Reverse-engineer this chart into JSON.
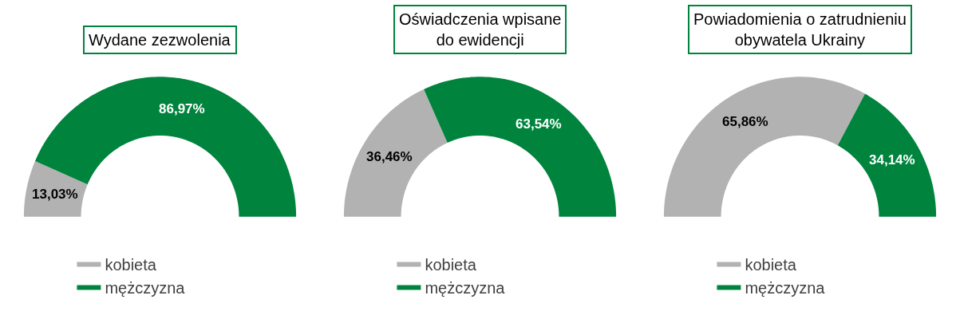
{
  "chart_data": [
    {
      "type": "donut",
      "title": "Wydane zezwolenia",
      "categories": [
        "kobieta",
        "mężczyzna"
      ],
      "values": [
        13.03,
        86.97
      ],
      "colors": [
        "#b2b2b2",
        "#00843d"
      ],
      "value_labels": [
        "13,03%",
        "86,97%"
      ],
      "legend": "bottom"
    },
    {
      "type": "donut",
      "title": "Oświadczenia wpisane\ndo ewidencji",
      "categories": [
        "kobieta",
        "mężczyzna"
      ],
      "values": [
        36.46,
        63.54
      ],
      "colors": [
        "#b2b2b2",
        "#00843d"
      ],
      "value_labels": [
        "36,46%",
        "63,54%"
      ],
      "legend": "bottom"
    },
    {
      "type": "donut",
      "title": "Powiadomienia o zatrudnieniu\nobywatela Ukrainy",
      "categories": [
        "kobieta",
        "mężczyzna"
      ],
      "values": [
        65.86,
        34.14
      ],
      "colors": [
        "#b2b2b2",
        "#00843d"
      ],
      "value_labels": [
        "65,86%",
        "34,14%"
      ],
      "legend": "bottom"
    }
  ]
}
